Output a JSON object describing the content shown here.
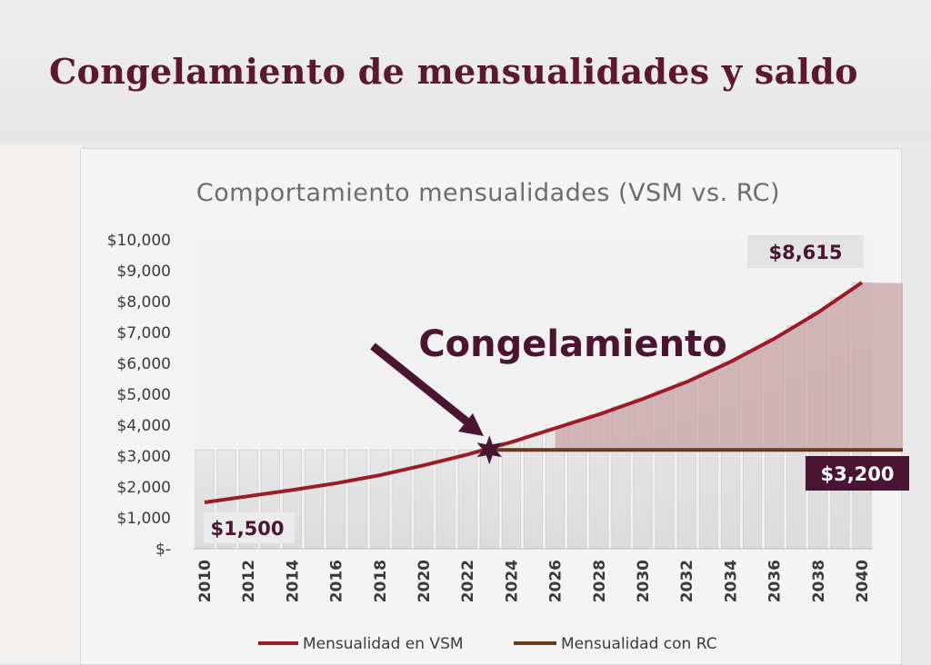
{
  "slide": {
    "title": "Congelamiento de mensualidades y saldo"
  },
  "chart_data": {
    "type": "line",
    "title": "Comportamiento mensualidades (VSM vs. RC)",
    "xlabel": "",
    "ylabel": "",
    "x": [
      2010,
      2012,
      2014,
      2016,
      2018,
      2020,
      2022,
      2024,
      2026,
      2028,
      2030,
      2032,
      2034,
      2036,
      2038,
      2040
    ],
    "x_tick_labels": [
      "2010",
      "2012",
      "2014",
      "2016",
      "2018",
      "2020",
      "2022",
      "2024",
      "2026",
      "2028",
      "2030",
      "2032",
      "2034",
      "2036",
      "2038",
      "2040"
    ],
    "ylim": [
      0,
      10000
    ],
    "y_ticks": [
      0,
      1000,
      2000,
      3000,
      4000,
      5000,
      6000,
      7000,
      8000,
      9000,
      10000
    ],
    "y_tick_labels": [
      "$-",
      "$1,000",
      "$2,000",
      "$3,000",
      "$4,000",
      "$5,000",
      "$6,000",
      "$7,000",
      "$8,000",
      "$9,000",
      "$10,000"
    ],
    "series": [
      {
        "name": "Mensualidad en VSM",
        "color": "#9b1c25",
        "x": [
          2010,
          2012,
          2014,
          2016,
          2018,
          2020,
          2022,
          2024,
          2026,
          2028,
          2030,
          2032,
          2034,
          2036,
          2038,
          2040
        ],
        "values": [
          1500,
          1700,
          1900,
          2120,
          2380,
          2700,
          3050,
          3450,
          3900,
          4350,
          4850,
          5400,
          6050,
          6800,
          7650,
          8615
        ]
      },
      {
        "name": "Mensualidad con RC",
        "color": "#6a3a1e",
        "x": [
          2023,
          2040
        ],
        "values": [
          3200,
          3200
        ]
      }
    ],
    "shaded_area": {
      "between": "Mensualidad en VSM / Mensualidad con RC",
      "from": 2026,
      "to": 2040,
      "color": "#c9a3a8"
    },
    "freeze_point": {
      "x": 2023,
      "y": 3200,
      "marker": "star-icon"
    },
    "annotations": {
      "start_label": "$1,500",
      "end_label": "$8,615",
      "rc_label": "$3,200",
      "freeze_label": "Congelamiento"
    },
    "legend": {
      "position": "bottom"
    },
    "grid": false,
    "vertical_bands": true
  }
}
